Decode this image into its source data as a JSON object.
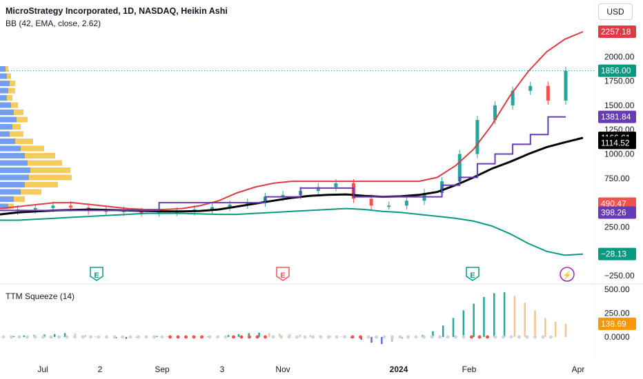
{
  "header": {
    "title": "MicroStrategy Incorporated, 1D, NASDAQ, Heikin Ashi",
    "bb_indicator": "BB (42, EMA, close, 2.62)",
    "currency": "USD"
  },
  "subpane": {
    "title": "TTM Squeeze (14)"
  },
  "colors": {
    "up": "#26a69a",
    "down": "#ef5350",
    "bb_upper": "#e03a45",
    "bb_lower": "#089981",
    "basis": "#000000",
    "step": "#673ab7",
    "accent_price": "#089981"
  },
  "chart_data": [
    {
      "type": "line",
      "subtitle": "price pane",
      "y_ticks": [
        "2000.00",
        "1750.00",
        "1500.00",
        "1250.00",
        "1000.00",
        "750.00",
        "250.00",
        "−250.00"
      ],
      "ylim": [
        -250,
        2300
      ],
      "x_ticks": [
        "Jul",
        "2",
        "Sep",
        "3",
        "Nov",
        "2024",
        "Feb",
        "Apr"
      ],
      "last_values": [
        {
          "label": "2257.18",
          "color": "#e03a45"
        },
        {
          "label": "1856.00",
          "color": "#089981"
        },
        {
          "label": "1381.84",
          "color": "#673ab7"
        },
        {
          "label": "1166.61",
          "color": "#000000"
        },
        {
          "label": "1114.52",
          "color": "#000000"
        },
        {
          "label": "490.47",
          "color": "#ef5350"
        },
        {
          "label": "398.26",
          "color": "#673ab7"
        },
        {
          "label": "−28.13",
          "color": "#089981"
        }
      ],
      "event_markers": [
        {
          "label": "E",
          "kind": "earnings",
          "color": "#089981"
        },
        {
          "label": "E",
          "kind": "earnings",
          "color": "#ef5350"
        },
        {
          "label": "E",
          "kind": "earnings",
          "color": "#089981"
        },
        {
          "label": "⚡",
          "kind": "dividend",
          "color": "#9c27b0"
        }
      ],
      "series": [
        {
          "name": "close",
          "values": [
            415,
            430,
            445,
            470,
            450,
            420,
            418,
            405,
            400,
            405,
            410,
            430,
            455,
            480,
            500,
            560,
            580,
            620,
            660,
            700,
            540,
            470,
            470,
            520,
            600,
            720,
            1000,
            1350,
            1500,
            1650,
            1700,
            1550,
            1856
          ]
        },
        {
          "name": "upper band",
          "values": [
            440,
            460,
            480,
            500,
            500,
            480,
            460,
            440,
            430,
            430,
            440,
            470,
            520,
            600,
            660,
            700,
            720,
            720,
            720,
            720,
            720,
            720,
            720,
            720,
            760,
            880,
            1050,
            1300,
            1600,
            1850,
            2050,
            2180,
            2257.18
          ]
        },
        {
          "name": "basis",
          "values": [
            380,
            400,
            410,
            420,
            425,
            430,
            425,
            420,
            415,
            410,
            410,
            415,
            430,
            460,
            490,
            520,
            550,
            570,
            580,
            585,
            570,
            560,
            565,
            580,
            610,
            680,
            760,
            850,
            920,
            1000,
            1070,
            1120,
            1166.61
          ]
        },
        {
          "name": "lower band",
          "values": [
            320,
            320,
            330,
            340,
            350,
            360,
            370,
            380,
            390,
            390,
            390,
            385,
            380,
            380,
            390,
            400,
            410,
            420,
            430,
            440,
            430,
            410,
            400,
            380,
            360,
            340,
            310,
            260,
            180,
            80,
            0,
            -40,
            -28.13
          ]
        },
        {
          "name": "step",
          "values": [
            420,
            420,
            420,
            420,
            420,
            420,
            420,
            420,
            420,
            500,
            500,
            500,
            500,
            500,
            500,
            560,
            560,
            650,
            650,
            650,
            560,
            560,
            560,
            560,
            560,
            680,
            760,
            900,
            1000,
            1100,
            1200,
            1381.84,
            1381.84
          ]
        }
      ]
    },
    {
      "type": "bar",
      "subtitle": "TTM Squeeze histogram",
      "y_ticks": [
        "500.00",
        "250.00",
        "0.0000"
      ],
      "ylim": [
        -80,
        500
      ],
      "last_value": {
        "label": "138.69",
        "color": "#ff9800"
      },
      "values": [
        10,
        15,
        20,
        25,
        30,
        40,
        35,
        20,
        10,
        -5,
        -15,
        -20,
        -10,
        5,
        10,
        8,
        5,
        3,
        2,
        5,
        10,
        20,
        30,
        40,
        45,
        40,
        35,
        30,
        25,
        20,
        15,
        10,
        5,
        -10,
        -30,
        -60,
        -75,
        -50,
        -20,
        0,
        20,
        60,
        120,
        200,
        280,
        350,
        420,
        460,
        470,
        430,
        360,
        280,
        200,
        160,
        138.69
      ]
    }
  ]
}
